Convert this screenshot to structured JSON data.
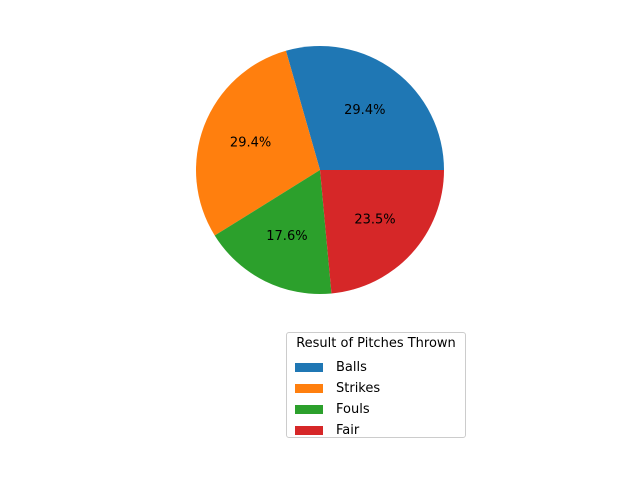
{
  "chart_data": {
    "type": "pie",
    "legend_title": "Result of Pitches Thrown",
    "legend_placement": "bottom-right",
    "slices": [
      {
        "label": "Balls",
        "percent": 29.4,
        "pct_text": "29.4%",
        "color": "#1f77b4"
      },
      {
        "label": "Strikes",
        "percent": 29.4,
        "pct_text": "29.4%",
        "color": "#ff7f0e"
      },
      {
        "label": "Fouls",
        "percent": 17.6,
        "pct_text": "17.6%",
        "color": "#2ca02c"
      },
      {
        "label": "Fair",
        "percent": 23.5,
        "pct_text": "23.5%",
        "color": "#d62728"
      }
    ]
  }
}
